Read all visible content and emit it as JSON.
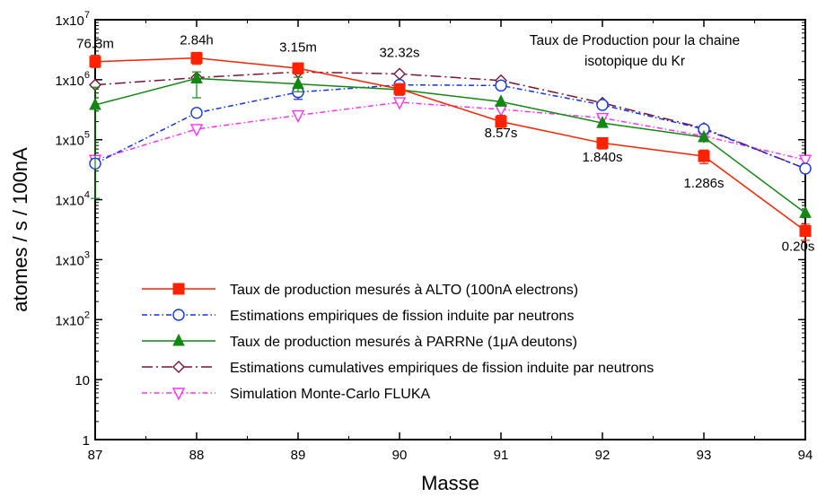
{
  "chart_data": {
    "type": "line",
    "title_lines": [
      "Taux de Production pour la chaine",
      "isotopique du Kr"
    ],
    "xlabel": "Masse",
    "ylabel": "atomes / s / 100nA",
    "xlim": [
      87,
      94
    ],
    "ylim": [
      1,
      10000000
    ],
    "yscale": "log",
    "x_ticks": [
      87,
      88,
      89,
      90,
      91,
      92,
      93,
      94
    ],
    "y_ticks": [
      {
        "value": 1,
        "base": "1",
        "exp": ""
      },
      {
        "value": 10,
        "base": "10",
        "exp": ""
      },
      {
        "value": 100,
        "base": "1x10",
        "exp": "2"
      },
      {
        "value": 1000,
        "base": "1x10",
        "exp": "3"
      },
      {
        "value": 10000,
        "base": "1x10",
        "exp": "4"
      },
      {
        "value": 100000,
        "base": "1x10",
        "exp": "5"
      },
      {
        "value": 1000000,
        "base": "1x10",
        "exp": "6"
      },
      {
        "value": 10000000,
        "base": "1x10",
        "exp": "7"
      }
    ],
    "legend_position": "lower-center",
    "series": [
      {
        "name": "Taux de production mesurés à ALTO (100nA electrons)",
        "color": "#ff2200",
        "dash": "solid",
        "marker": "square-filled",
        "x": [
          87,
          88,
          89,
          90,
          91,
          92,
          93,
          94
        ],
        "y": [
          2000000,
          2300000,
          1550000,
          700000,
          200000,
          88000,
          53000,
          3000
        ],
        "err_low": [
          1600000,
          1800000,
          1250000,
          560000,
          155000,
          70000,
          40000,
          2100
        ],
        "err_high": [
          2550000,
          2850000,
          1900000,
          840000,
          255000,
          105000,
          67000,
          3900
        ]
      },
      {
        "name": "Estimations empiriques de fission induite par neutrons",
        "color": "#1133ee",
        "dash": "dashdot",
        "marker": "circle-open",
        "x": [
          87,
          88,
          89,
          90,
          91,
          92,
          93,
          94
        ],
        "y": [
          40000,
          280000,
          620000,
          820000,
          800000,
          380000,
          150000,
          33000
        ],
        "err_low": [
          35000,
          null,
          470000,
          null,
          null,
          null,
          null,
          null
        ],
        "err_high": [
          48000,
          null,
          770000,
          null,
          null,
          null,
          null,
          null
        ]
      },
      {
        "name": "Taux de production mesurés à PARRNe (1μA deutons)",
        "color": "#118811",
        "dash": "solid",
        "marker": "triangle-filled",
        "x": [
          87,
          88,
          89,
          90,
          91,
          92,
          93,
          94
        ],
        "y": [
          380000,
          1050000,
          850000,
          680000,
          430000,
          190000,
          110000,
          6000
        ],
        "err_low": [
          10500,
          500000,
          630000,
          550000,
          null,
          null,
          null,
          null
        ],
        "err_high": [
          750000,
          1350000,
          1100000,
          820000,
          null,
          null,
          null,
          null
        ]
      },
      {
        "name": "Estimations cumulatives empiriques de fission induite par neutrons",
        "color": "#7a1535",
        "dash": "dashdotlong",
        "marker": "diamond-open",
        "x": [
          87,
          88,
          89,
          90,
          91,
          92,
          93,
          94
        ],
        "y": [
          820000,
          1080000,
          1350000,
          1250000,
          970000,
          410000,
          155000,
          33000
        ]
      },
      {
        "name": "Simulation Monte-Carlo FLUKA",
        "color": "#ff33ee",
        "dash": "dashdot",
        "marker": "triangle-down-open",
        "x": [
          87,
          88,
          89,
          90,
          91,
          92,
          93,
          94
        ],
        "y": [
          46000,
          150000,
          255000,
          420000,
          320000,
          230000,
          115000,
          46000
        ]
      }
    ],
    "annotations": [
      {
        "text": "76.3m",
        "x": 87,
        "y": 3400000
      },
      {
        "text": "2.84h",
        "x": 88,
        "y": 3900000
      },
      {
        "text": "3.15m",
        "x": 89,
        "y": 2950000
      },
      {
        "text": "32.32s",
        "x": 90,
        "y": 2400000
      },
      {
        "text": "8.57s",
        "x": 91,
        "y": 110000
      },
      {
        "text": "1.840s",
        "x": 92,
        "y": 43000
      },
      {
        "text": "1.286s",
        "x": 93,
        "y": 16000
      },
      {
        "text": "0.20s",
        "x": 94,
        "y": 1400
      }
    ]
  }
}
